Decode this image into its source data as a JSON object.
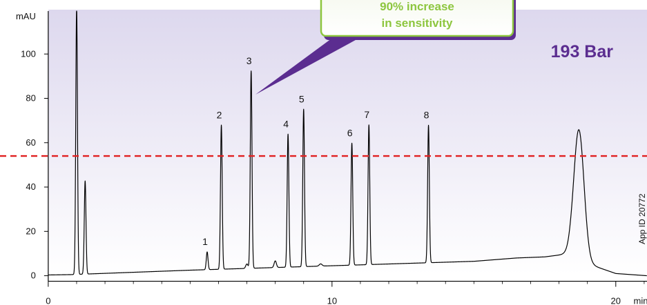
{
  "chart_data": {
    "type": "line",
    "ylabel": "mAU",
    "xlabel": "min",
    "xlim": [
      -1.7,
      21.1
    ],
    "ylim": [
      -2,
      120
    ],
    "x_ticks": [
      0,
      10,
      20
    ],
    "y_ticks": [
      0,
      20,
      40,
      60,
      80,
      100
    ],
    "x_tick_labels": [
      "0",
      "10",
      "20"
    ],
    "y_tick_labels": [
      "0",
      "20",
      "40",
      "60",
      "80",
      "100"
    ],
    "threshold_line": {
      "y": 54,
      "color": "#e02020",
      "style": "dashed"
    },
    "peaks": [
      {
        "label": "",
        "x": 1.0,
        "height": 120,
        "width": 0.03
      },
      {
        "label": "",
        "x": 1.3,
        "height": 42,
        "width": 0.03
      },
      {
        "label": "1",
        "x": 5.6,
        "height": 8,
        "width": 0.03
      },
      {
        "label": "2",
        "x": 6.1,
        "height": 65,
        "width": 0.03
      },
      {
        "label": "",
        "x": 7.0,
        "height": 2,
        "width": 0.04
      },
      {
        "label": "3",
        "x": 7.15,
        "height": 89,
        "width": 0.03
      },
      {
        "label": "",
        "x": 8.0,
        "height": 3,
        "width": 0.04
      },
      {
        "label": "4",
        "x": 8.45,
        "height": 60,
        "width": 0.03
      },
      {
        "label": "5",
        "x": 9.0,
        "height": 71,
        "width": 0.03
      },
      {
        "label": "",
        "x": 9.6,
        "height": 1,
        "width": 0.05
      },
      {
        "label": "6",
        "x": 10.7,
        "height": 55,
        "width": 0.03
      },
      {
        "label": "7",
        "x": 11.3,
        "height": 63,
        "width": 0.03
      },
      {
        "label": "8",
        "x": 13.4,
        "height": 62,
        "width": 0.03
      },
      {
        "label": "",
        "x": 18.7,
        "height": 58,
        "width": 0.18
      }
    ],
    "baseline": [
      [
        -1.7,
        0
      ],
      [
        0.8,
        0.5
      ],
      [
        5,
        2.5
      ],
      [
        10,
        4.5
      ],
      [
        15,
        6.5
      ],
      [
        16.5,
        8
      ],
      [
        17.5,
        8.5
      ],
      [
        18.4,
        10
      ],
      [
        19.1,
        5
      ],
      [
        20,
        1
      ],
      [
        21.1,
        0
      ]
    ],
    "line_color": "#000000",
    "background_gradient": [
      "#ddd8ee",
      "#ffffff"
    ]
  },
  "callout": {
    "line1": "90% increase",
    "line2": "in sensitivity",
    "text_color": "#8dc63f",
    "pointer_color": "#5b2d90"
  },
  "pressure_label": "193 Bar",
  "pressure_color": "#5b2d90",
  "app_id": "App ID 20772"
}
